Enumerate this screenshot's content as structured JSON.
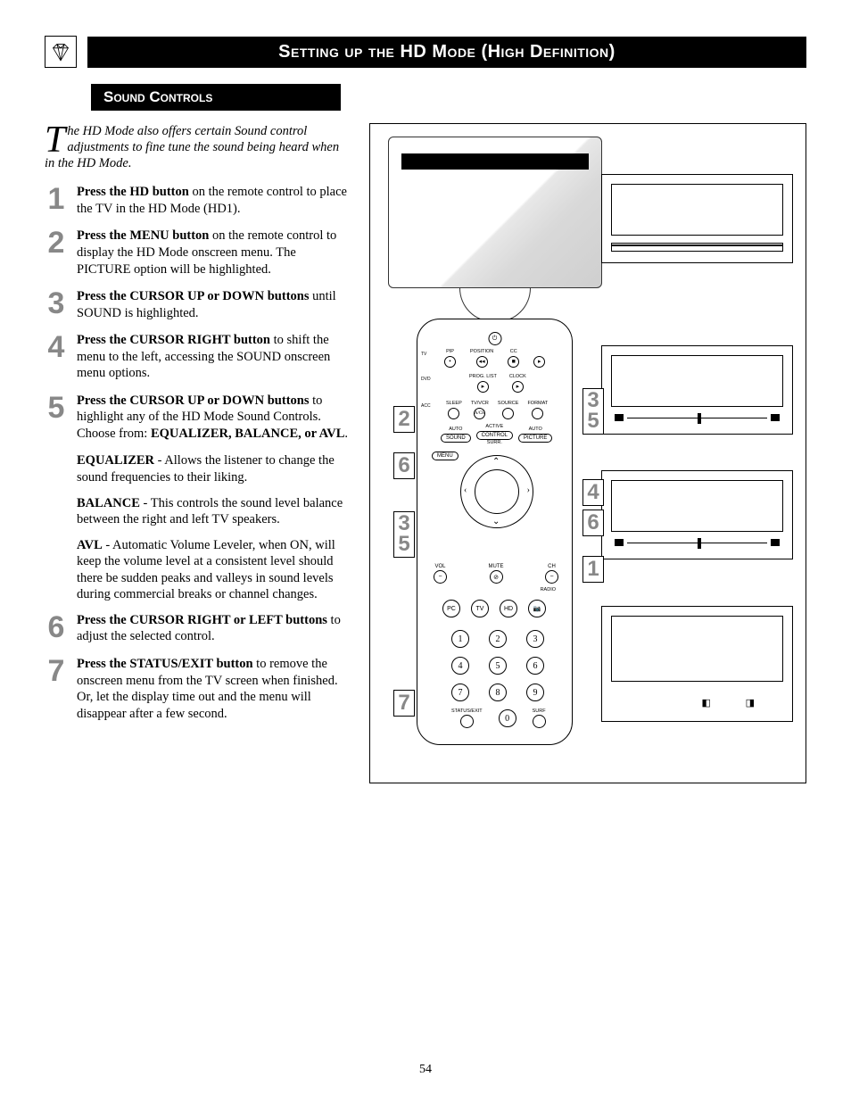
{
  "header": {
    "title": "Setting up the HD Mode (High Definition)",
    "subtitle": "Sound Controls"
  },
  "intro": {
    "dropcap": "T",
    "text": "he HD Mode also offers certain Sound control adjustments to fine tune the sound being heard when in the HD Mode."
  },
  "steps": [
    {
      "n": "1",
      "bold": "Press the HD button",
      "rest": " on the remote control to place the TV in the HD Mode (HD1)."
    },
    {
      "n": "2",
      "bold": "Press the MENU button",
      "rest": " on the remote control to display the HD Mode onscreen menu. The PICTURE option will be highlighted."
    },
    {
      "n": "3",
      "bold": "Press the CURSOR UP or DOWN buttons",
      "rest": " until SOUND is highlighted."
    },
    {
      "n": "4",
      "bold": "Press the CURSOR RIGHT button",
      "rest": " to shift the menu to the left, accessing the SOUND onscreen menu options."
    },
    {
      "n": "5",
      "bold": "Press the CURSOR UP or DOWN buttons",
      "rest": " to highlight any of the HD Mode Sound Controls. Choose from: ",
      "tail_bold": "EQUALIZER, BALANCE, or AVL",
      "tail": "."
    }
  ],
  "descs": [
    {
      "bold": "EQUALIZER",
      "rest": " - Allows the listener to change the sound frequencies to their liking."
    },
    {
      "bold": "BALANCE",
      "rest": " - This controls the sound level balance between the right and left TV speakers."
    },
    {
      "bold": "AVL",
      "rest": " - Automatic Volume Leveler, when ON, will keep the volume level at a consistent level should there be sudden peaks and valleys in sound levels during commercial breaks or channel changes."
    }
  ],
  "steps2": [
    {
      "n": "6",
      "bold": "Press the CURSOR RIGHT or LEFT buttons",
      "rest": " to adjust the selected control."
    },
    {
      "n": "7",
      "bold": "Press the STATUS/EXIT button",
      "rest": " to remove the onscreen menu from the TV screen when finished. Or, let the display time out and the menu will disappear after a few second."
    }
  ],
  "remote": {
    "row1": [
      "PIP",
      "POSITION",
      "CC"
    ],
    "row2": [
      "PROG. LIST",
      "CLOCK"
    ],
    "side": [
      "TV",
      "DVD",
      "ACC"
    ],
    "row3": [
      "SLEEP",
      "TV/VCR",
      "SOURCE",
      "FORMAT"
    ],
    "row3b": "A/CH",
    "pills": [
      "SOUND",
      "CONTROL",
      "PICTURE"
    ],
    "pill_top": [
      "AUTO",
      "ACTIVE",
      "AUTO"
    ],
    "pill_bot": "SURR.",
    "menu": "MENU",
    "vol": "VOL",
    "mute": "MUTE",
    "ch": "CH",
    "radio": "RADIO",
    "modes": [
      "PC",
      "TV",
      "HD",
      "📷"
    ],
    "nums": [
      "1",
      "2",
      "3",
      "4",
      "5",
      "6",
      "7",
      "8",
      "9",
      "0"
    ],
    "bottom_l": "STATUS/EXIT",
    "bottom_r": "SURF"
  },
  "callouts": {
    "c2": "2",
    "c6": "6",
    "c35_a": "3",
    "c35_b": "5",
    "c7": "7",
    "c4": "4",
    "c1": "1"
  },
  "pagenum": "54"
}
